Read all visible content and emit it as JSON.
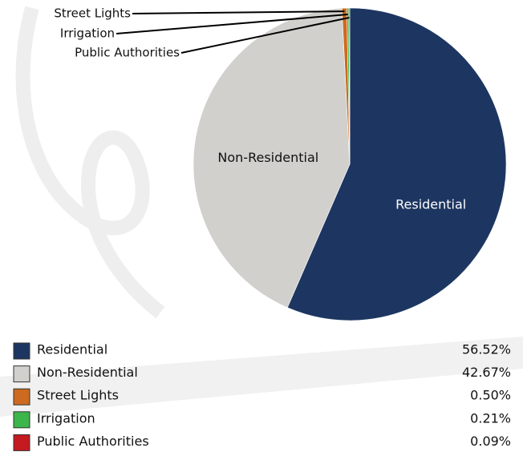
{
  "chart_data": {
    "type": "pie",
    "categories": [
      "Residential",
      "Non-Residential",
      "Street Lights",
      "Irrigation",
      "Public Authorities"
    ],
    "values": [
      56.52,
      42.67,
      0.5,
      0.21,
      0.09
    ],
    "value_labels": [
      "56.52%",
      "42.67%",
      "0.50%",
      "0.21%",
      "0.09%"
    ],
    "colors": [
      "#1d3661",
      "#d1d0cd",
      "#cc6a1f",
      "#3cb54a",
      "#c41a20"
    ],
    "start_angle": 0,
    "direction": "clockwise"
  }
}
